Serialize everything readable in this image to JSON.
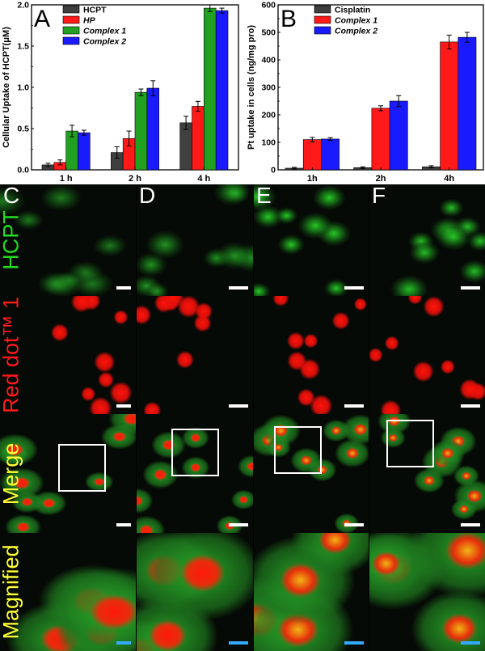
{
  "chart_data": [
    {
      "type": "bar",
      "panel_label": "A",
      "categories": [
        "1 h",
        "2 h",
        "4 h"
      ],
      "ylabel": "Cellular Uptake of HCPT(μM)",
      "xlabel": "",
      "ylim": [
        0,
        2.0
      ],
      "yticks": [
        "0.0",
        "0.5",
        "1.0",
        "1.5",
        "2.0"
      ],
      "legend": "top-left",
      "series": [
        {
          "name": "HCPT",
          "color": "#3f3f3f",
          "values": [
            0.06,
            0.21,
            0.57
          ],
          "errors": [
            0.02,
            0.07,
            0.08
          ]
        },
        {
          "name": "HP",
          "color": "#ff1a1a",
          "values": [
            0.09,
            0.38,
            0.77
          ],
          "errors": [
            0.03,
            0.09,
            0.06
          ]
        },
        {
          "name": "Complex 1",
          "color": "#22a022",
          "values": [
            0.47,
            0.94,
            1.96
          ],
          "errors": [
            0.07,
            0.04,
            0.04
          ]
        },
        {
          "name": "Complex 2",
          "color": "#1a1aff",
          "values": [
            0.45,
            0.99,
            1.93
          ],
          "errors": [
            0.03,
            0.09,
            0.03
          ]
        }
      ]
    },
    {
      "type": "bar",
      "panel_label": "B",
      "categories": [
        "1h",
        "2h",
        "4h"
      ],
      "ylabel": "Pt uptake in cells (ng/mg pro)",
      "xlabel": "",
      "ylim": [
        0,
        600
      ],
      "yticks": [
        "0",
        "100",
        "200",
        "300",
        "400",
        "500",
        "600"
      ],
      "legend": "top-left",
      "series": [
        {
          "name": "Cisplatin",
          "color": "#3f3f3f",
          "values": [
            6,
            8,
            11
          ],
          "errors": [
            3,
            3,
            4
          ]
        },
        {
          "name": "Complex 1",
          "color": "#ff1a1a",
          "values": [
            110,
            224,
            465
          ],
          "errors": [
            8,
            9,
            25
          ]
        },
        {
          "name": "Complex 2",
          "color": "#1a1aff",
          "values": [
            112,
            250,
            482
          ],
          "errors": [
            5,
            20,
            18
          ]
        }
      ]
    }
  ],
  "micrographs": {
    "columns": [
      "C",
      "D",
      "E",
      "F"
    ],
    "rows": [
      {
        "label": "HCPT",
        "color": "#22dd22"
      },
      {
        "label": "Red dot™ 1",
        "color": "#ff1a1a"
      },
      {
        "label": "Merge",
        "color": "#ffff33"
      },
      {
        "label": "Magnified",
        "color": "#ffff33"
      }
    ]
  }
}
